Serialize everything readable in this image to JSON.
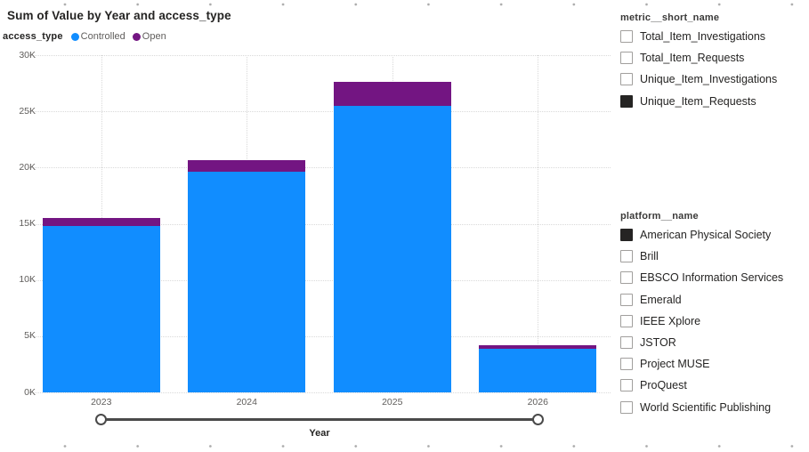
{
  "chart": {
    "title": "Sum of Value by Year and access_type",
    "legend": {
      "field_label": "access_type",
      "items": [
        {
          "label": "Controlled",
          "color": "#118DFF"
        },
        {
          "label": "Open",
          "color": "#731582"
        }
      ]
    },
    "y_axis": {
      "title": "Sum of Value",
      "ticks": [
        "0K",
        "5K",
        "10K",
        "15K",
        "20K",
        "25K",
        "30K"
      ]
    },
    "x_axis": {
      "title": "Year"
    }
  },
  "chart_data": {
    "type": "bar",
    "stacked": true,
    "title": "Sum of Value by Year and access_type",
    "categories": [
      "2023",
      "2024",
      "2025",
      "2026"
    ],
    "series": [
      {
        "name": "Controlled",
        "color": "#118DFF",
        "values": [
          14800,
          19600,
          25500,
          3900
        ]
      },
      {
        "name": "Open",
        "color": "#731582",
        "values": [
          700,
          1050,
          2150,
          300
        ]
      }
    ],
    "xlabel": "Year",
    "ylabel": "Sum of Value",
    "ylim": [
      0,
      30000
    ],
    "ytick_step": 5000,
    "legend_position": "top-left",
    "grid": "dotted horizontal and vertical at category centers",
    "x_zoom_slider": {
      "from": "2023",
      "to": "2026"
    }
  },
  "slicers": [
    {
      "header": "metric__short_name",
      "items": [
        {
          "label": "Total_Item_Investigations",
          "checked": false
        },
        {
          "label": "Total_Item_Requests",
          "checked": false
        },
        {
          "label": "Unique_Item_Investigations",
          "checked": false
        },
        {
          "label": "Unique_Item_Requests",
          "checked": true
        }
      ]
    },
    {
      "header": "platform__name",
      "items": [
        {
          "label": "American Physical Society",
          "checked": true
        },
        {
          "label": "Brill",
          "checked": false
        },
        {
          "label": "EBSCO Information Services",
          "checked": false
        },
        {
          "label": "Emerald",
          "checked": false
        },
        {
          "label": "IEEE Xplore",
          "checked": false
        },
        {
          "label": "JSTOR",
          "checked": false
        },
        {
          "label": "Project MUSE",
          "checked": false
        },
        {
          "label": "ProQuest",
          "checked": false
        },
        {
          "label": "World Scientific Publishing",
          "checked": false
        }
      ]
    }
  ]
}
